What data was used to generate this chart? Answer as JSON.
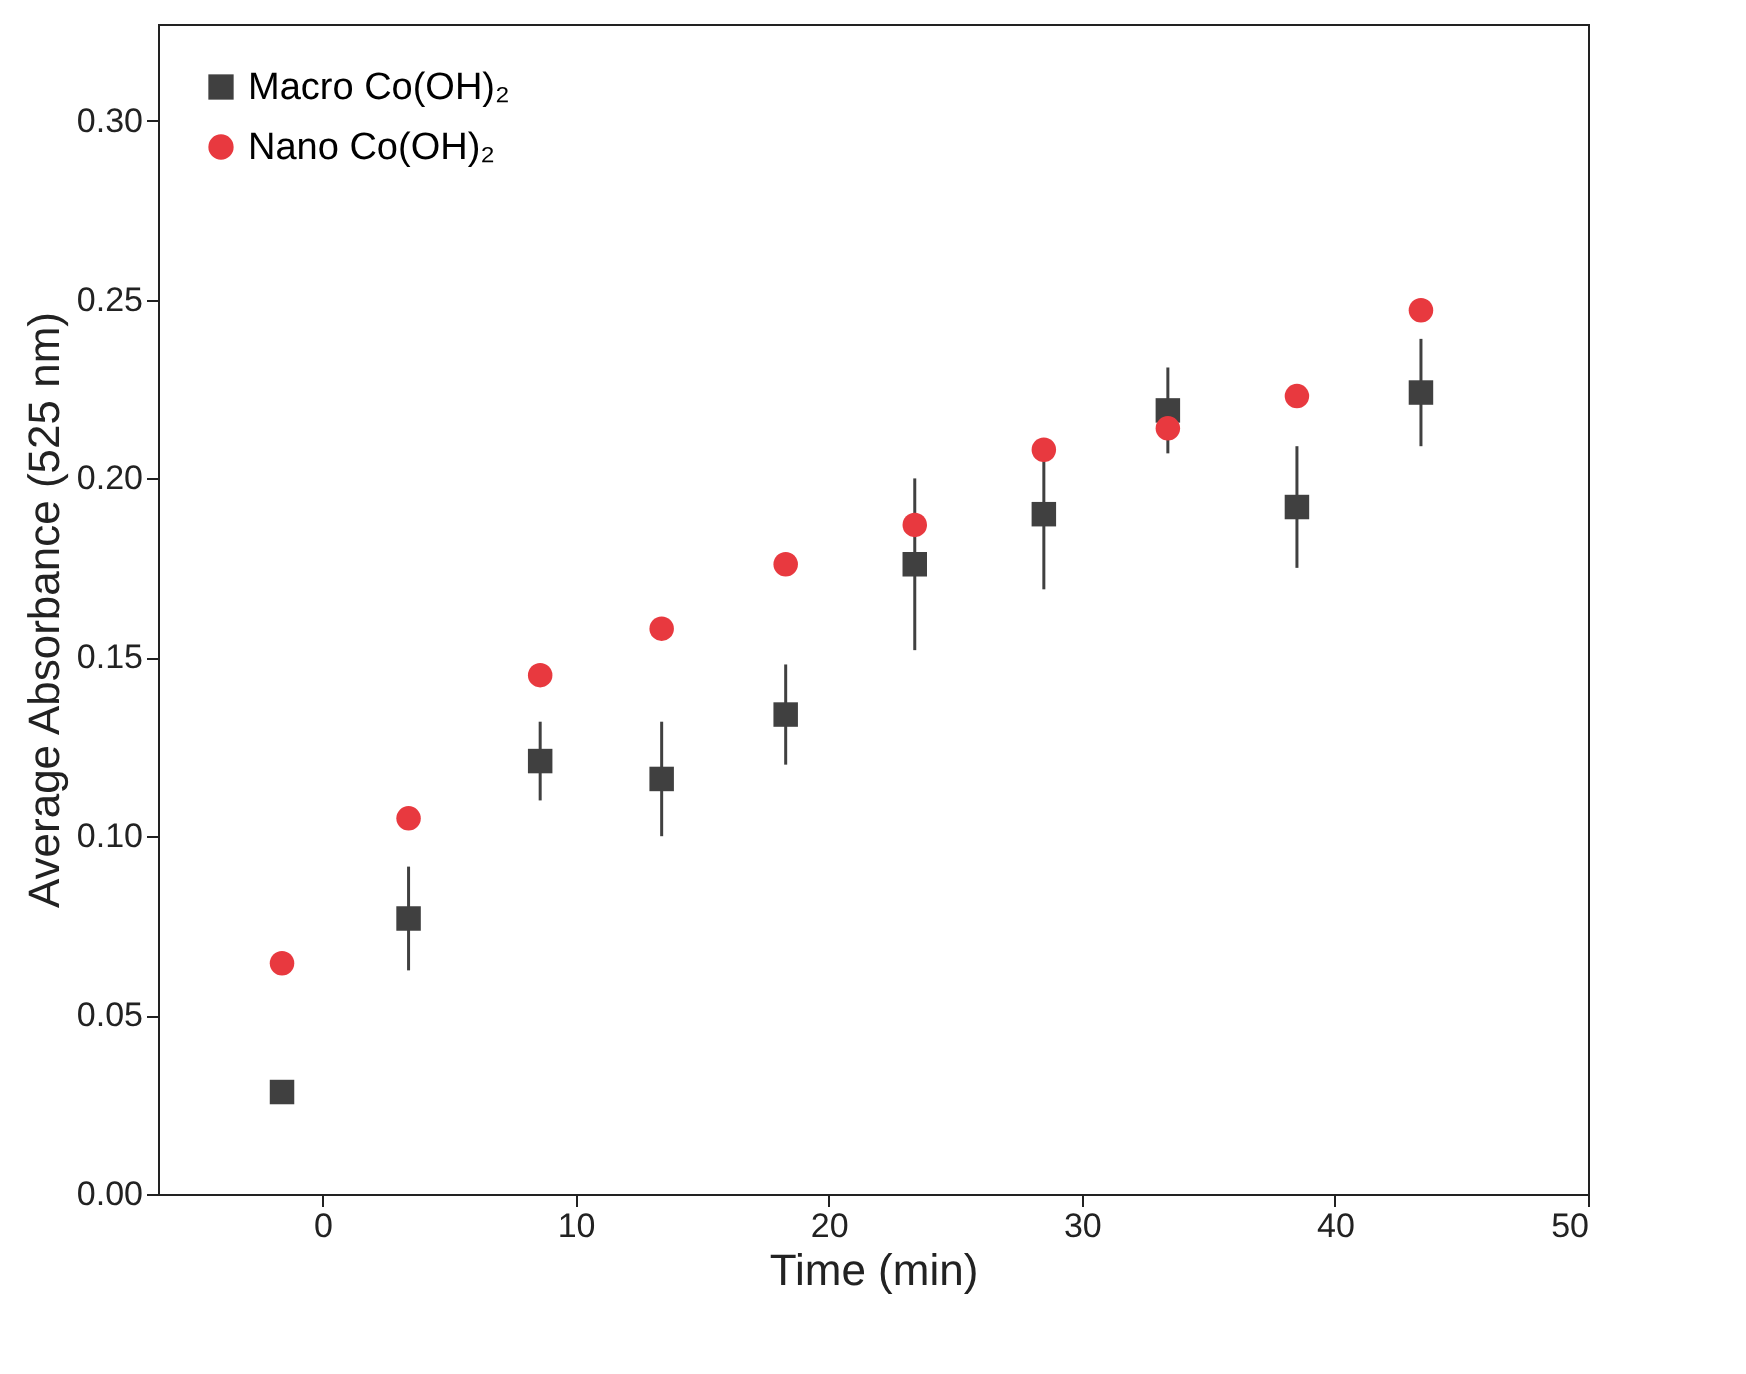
{
  "chart_data": {
    "type": "scatter",
    "xlabel": "Time (min)",
    "ylabel": "Average Absorbance (525 nm)",
    "xlim": [
      -6.5,
      50
    ],
    "ylim": [
      0,
      0.327
    ],
    "xticks": [
      0,
      10,
      20,
      30,
      40,
      50
    ],
    "yticks": [
      {
        "value": 0,
        "label": "0.00"
      },
      0.05,
      {
        "value": 0.1,
        "label": "0.10"
      },
      0.15,
      {
        "value": 0.2,
        "label": "0.20"
      },
      0.25,
      {
        "value": 0.3,
        "label": "0.30"
      }
    ],
    "legend": "top left",
    "grid": false,
    "series": [
      {
        "name": "Macro Co(OH)₂",
        "color": "#404040",
        "marker": "square",
        "x": [
          -1.6,
          3.4,
          8.6,
          13.4,
          18.3,
          23.4,
          28.5,
          33.4,
          38.5,
          43.4
        ],
        "values": [
          0.0285,
          0.077,
          0.121,
          0.116,
          0.134,
          0.176,
          0.19,
          0.219,
          0.192,
          0.224
        ],
        "errors": [
          0.003,
          0.0145,
          0.011,
          0.016,
          0.014,
          0.024,
          0.021,
          0.012,
          0.017,
          0.015
        ]
      },
      {
        "name": "Nano Co(OH)₂",
        "color": "#e8393f",
        "marker": "circle",
        "x": [
          -1.6,
          3.4,
          8.6,
          13.4,
          18.3,
          23.4,
          28.5,
          33.4,
          38.5,
          43.4
        ],
        "values": [
          0.0645,
          0.105,
          0.145,
          0.158,
          0.176,
          0.187,
          0.208,
          0.214,
          0.223,
          0.247
        ]
      }
    ]
  }
}
